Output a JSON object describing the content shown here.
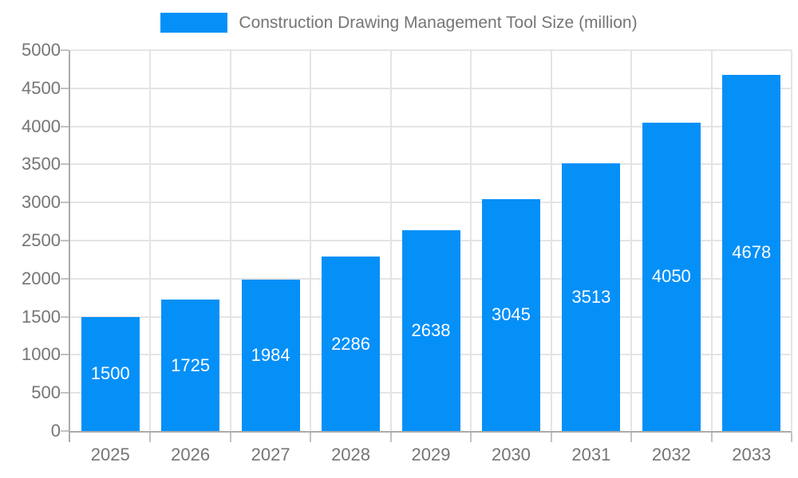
{
  "chart_data": {
    "type": "bar",
    "title": "Construction Drawing Management Tool Size (million)",
    "categories": [
      "2025",
      "2026",
      "2027",
      "2028",
      "2029",
      "2030",
      "2031",
      "2032",
      "2033"
    ],
    "values": [
      1500,
      1725,
      1984,
      2286,
      2638,
      3045,
      3513,
      4050,
      4678
    ],
    "xlabel": "",
    "ylabel": "",
    "ylim": [
      0,
      5000
    ],
    "y_ticks": [
      0,
      500,
      1000,
      1500,
      2000,
      2500,
      3000,
      3500,
      4000,
      4500,
      5000
    ],
    "grid": "on",
    "legend_position": "top-center",
    "value_labels": "centered-inside-bars",
    "colors": {
      "bar": "#0590F8",
      "bar_label_text": "#FFFFFF",
      "axis_text": "#757575",
      "grid_line": "#E4E4E4",
      "axis_line": "#ABABAB",
      "tick_line": "#C2C2C2",
      "background": "#FFFFFF"
    }
  }
}
